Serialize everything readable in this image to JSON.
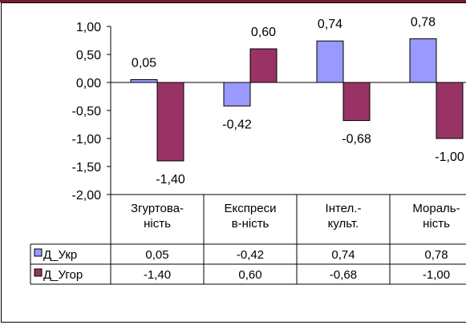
{
  "colors": {
    "top_bar": "#7b1a2e",
    "series_1": "#9999ff",
    "series_2": "#993366",
    "border": "#000000"
  },
  "chart_data": {
    "type": "bar",
    "categories": [
      "Згуртова-ність",
      "Експреси в-ність",
      "Інтел.-культ.",
      "Мораль-ність"
    ],
    "category_lines": [
      [
        "Згуртова-",
        "ність"
      ],
      [
        "Експреси",
        "в-ність"
      ],
      [
        "Інтел.-",
        "культ."
      ],
      [
        "Мораль-",
        "ність"
      ]
    ],
    "series": [
      {
        "name": "Д_Укр",
        "color": "#9999ff",
        "values": [
          0.05,
          -0.42,
          0.74,
          0.78
        ],
        "labels": [
          "0,05",
          "-0,42",
          "0,74",
          "0,78"
        ]
      },
      {
        "name": "Д_Угор",
        "color": "#993366",
        "values": [
          -1.4,
          0.6,
          -0.68,
          -1.0
        ],
        "labels": [
          "-1,40",
          "0,60",
          "-0,68",
          "-1,00"
        ]
      }
    ],
    "ylim": [
      -2.0,
      1.0
    ],
    "yticks": [
      1.0,
      0.5,
      0.0,
      -0.5,
      -1.0,
      -1.5,
      -2.0
    ],
    "ytick_labels": [
      "1,00",
      "0,50",
      "0,00",
      "-0,50",
      "-1,00",
      "-1,50",
      "-2,00"
    ],
    "data_table": true,
    "legend_keys_in_table": true,
    "grid": false,
    "title": "",
    "xlabel": "",
    "ylabel": ""
  }
}
